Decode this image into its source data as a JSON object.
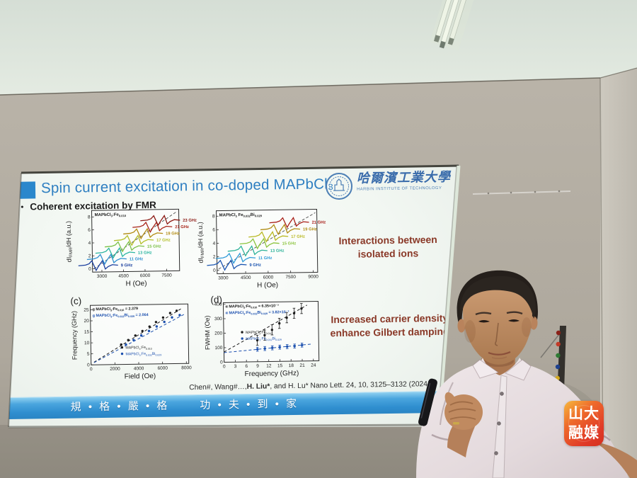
{
  "slide": {
    "title": "Spin current excitation in co-doped MAPbCl₃",
    "bullet_marker": "•",
    "bullet": "Coherent excitation by FMR",
    "logo": {
      "cn": "哈爾濱工業大學",
      "en": "HARBIN INSTITUTE OF TECHNOLOGY"
    },
    "note1": "Interactions between isolated ions",
    "note2": "Increased carrier density enhance Gilbert damping",
    "panel_c": "(c)",
    "panel_d": "(d)",
    "citation_pre": "Chen#, Wang#…,",
    "citation_bold": "H. Liu*",
    "citation_post": ", and H. Lu* Nano Lett. 24, 10, 3125–3132 (2024",
    "footer": "規 • 格 • 嚴 • 格      功 • 夫 • 到 • 家"
  },
  "watermark": {
    "line1": "山大",
    "line2": "融媒"
  },
  "colors": {
    "title_blue": "#2f7fc1",
    "note_red": "#8a3928",
    "bar_blue": "#3d9ad8",
    "watermark_red": "#e8472b"
  },
  "chart_data": [
    {
      "type": "line",
      "panel": "a",
      "label": "MAPbCl_{3}:Fe_{0.010}",
      "xlabel": "H (Oe)",
      "ylabel": "dI_{FMR}/dH (a.u.)",
      "xlim": [
        2350,
        8400
      ],
      "ylim": [
        -0.5,
        9
      ],
      "xticks": [
        3000,
        4500,
        6000,
        7500
      ],
      "yticks": [
        0,
        2,
        4,
        6,
        8
      ],
      "diagonal": [
        [
          2450,
          0
        ],
        [
          8300,
          8.7
        ]
      ],
      "curves": [
        {
          "label": "9 GHz",
          "x": 2750,
          "y": 0.5,
          "color": "#1b3f9e"
        },
        {
          "label": "11 GHz",
          "x": 3350,
          "y": 1.45,
          "color": "#2f8fd0"
        },
        {
          "label": "13 GHz",
          "x": 3950,
          "y": 2.4,
          "color": "#2ab5a0"
        },
        {
          "label": "15 GHz",
          "x": 4600,
          "y": 3.35,
          "color": "#7cc047"
        },
        {
          "label": "17 GHz",
          "x": 5250,
          "y": 4.3,
          "color": "#b4bf2a"
        },
        {
          "label": "19 GHz",
          "x": 5900,
          "y": 5.3,
          "color": "#b28a10"
        },
        {
          "label": "21 GHz",
          "x": 6550,
          "y": 6.3,
          "color": "#a82318"
        },
        {
          "label": "23 GHz",
          "x": 7100,
          "y": 7.3,
          "color": "#8c1a14"
        }
      ]
    },
    {
      "type": "line",
      "panel": "b",
      "label": "MAPbCl_{3} Fe_{0.032}Bi_{0.029}",
      "xlabel": "H (Oe)",
      "ylabel": "dI_{FMR}/dH (a.u.)",
      "xlim": [
        2600,
        9300
      ],
      "ylim": [
        -0.5,
        8.8
      ],
      "xticks": [
        3000,
        4500,
        6000,
        7500,
        9000
      ],
      "yticks": [
        0,
        2,
        4,
        6,
        8
      ],
      "diagonal": [
        [
          2700,
          0.2
        ],
        [
          9200,
          8.3
        ]
      ],
      "curves": [
        {
          "label": "9 GHz",
          "x": 3250,
          "y": 0.75,
          "color": "#1b55b0"
        },
        {
          "label": "11 GHz",
          "x": 3850,
          "y": 1.75,
          "color": "#2f9bd8"
        },
        {
          "label": "13 GHz",
          "x": 4650,
          "y": 2.8,
          "color": "#2fb39a"
        },
        {
          "label": "15 GHz",
          "x": 5450,
          "y": 3.85,
          "color": "#8cc43e"
        },
        {
          "label": "17 GHz",
          "x": 6050,
          "y": 4.85,
          "color": "#b9b822"
        },
        {
          "label": "19 GHz",
          "x": 6850,
          "y": 5.9,
          "color": "#b08c14"
        },
        {
          "label": "21 GHz",
          "x": 7450,
          "y": 6.9,
          "color": "#a81e18"
        }
      ]
    },
    {
      "type": "scatter",
      "panel": "c",
      "xlabel": "Field (Oe)",
      "ylabel": "Frequency (GHz)",
      "xlim": [
        0,
        8200
      ],
      "ylim": [
        0,
        27
      ],
      "xticks": [
        0,
        2000,
        4000,
        6000,
        8000
      ],
      "yticks": [
        0,
        5,
        10,
        15,
        20,
        25
      ],
      "annotations": [
        {
          "text": "g MAPbCl_{3}:Fe_{0.010} = 2.379",
          "color": "#111111"
        },
        {
          "text": "g MAPbCl_{3}:Fe_{0.032}Bi_{0.029} = 2.064",
          "color": "#1b4fae"
        }
      ],
      "series": [
        {
          "name": "MAPbCl_{3}:Fe_{0.010}",
          "color": "#1c1c1c",
          "points": [
            [
              2550,
              9
            ],
            [
              3150,
              11
            ],
            [
              3750,
              13
            ],
            [
              4350,
              15
            ],
            [
              4950,
              17
            ],
            [
              5500,
              19
            ],
            [
              6100,
              21
            ],
            [
              6700,
              23
            ],
            [
              7250,
              24
            ]
          ],
          "fit": [
            [
              250,
              1.2
            ],
            [
              7600,
              24.8
            ]
          ]
        },
        {
          "name": "MAPbCl_{3}:Fe_{0.032}Bi_{0.029}",
          "color": "#1b4fae",
          "points": [
            [
              2950,
              9
            ],
            [
              3600,
              11
            ],
            [
              4250,
              13
            ],
            [
              4900,
              15
            ],
            [
              5550,
              17
            ],
            [
              6200,
              19
            ],
            [
              6850,
              21
            ],
            [
              7500,
              22
            ]
          ],
          "fit": [
            [
              250,
              1.0
            ],
            [
              7900,
              22.4
            ]
          ]
        }
      ]
    },
    {
      "type": "scatter",
      "panel": "d",
      "xlabel": "Frequency (GHz)",
      "ylabel": "FWHM (Oe)",
      "xlim": [
        0,
        25.5
      ],
      "ylim": [
        0,
        410
      ],
      "xticks": [
        0,
        3,
        6,
        9,
        12,
        15,
        18,
        21,
        24
      ],
      "yticks": [
        0,
        100,
        200,
        300,
        400
      ],
      "annotations": [
        {
          "text": "α MAPbCl_{3}:Fe_{0.010} = 6.35×10⁻³",
          "color": "#111111"
        },
        {
          "text": "α MAPbCl_{3}:Fe_{0.032}Bi_{0.029} = 3.82×10⁻³",
          "color": "#1b4fae"
        }
      ],
      "series": [
        {
          "name": "MAPbCl_{3}:Fe_{0.010}",
          "color": "#1c1c1c",
          "err": 35,
          "points": [
            [
              9,
              148
            ],
            [
              11,
              182
            ],
            [
              13,
              218
            ],
            [
              15,
              262
            ],
            [
              17,
              300
            ],
            [
              19,
              330
            ],
            [
              21,
              362
            ]
          ],
          "fit": [
            [
              0,
              70
            ],
            [
              22.5,
              385
            ]
          ]
        },
        {
          "name": "MAPbCl_{3}:Fe_{0.032}Bi_{0.029}",
          "color": "#1b4fae",
          "err": 14,
          "points": [
            [
              9,
              86
            ],
            [
              11,
              90
            ],
            [
              13,
              94
            ],
            [
              15,
              98
            ],
            [
              17,
              101
            ],
            [
              19,
              104
            ],
            [
              21,
              110
            ]
          ],
          "fit": [
            [
              0,
              66
            ],
            [
              23.5,
              116
            ]
          ]
        }
      ]
    }
  ]
}
